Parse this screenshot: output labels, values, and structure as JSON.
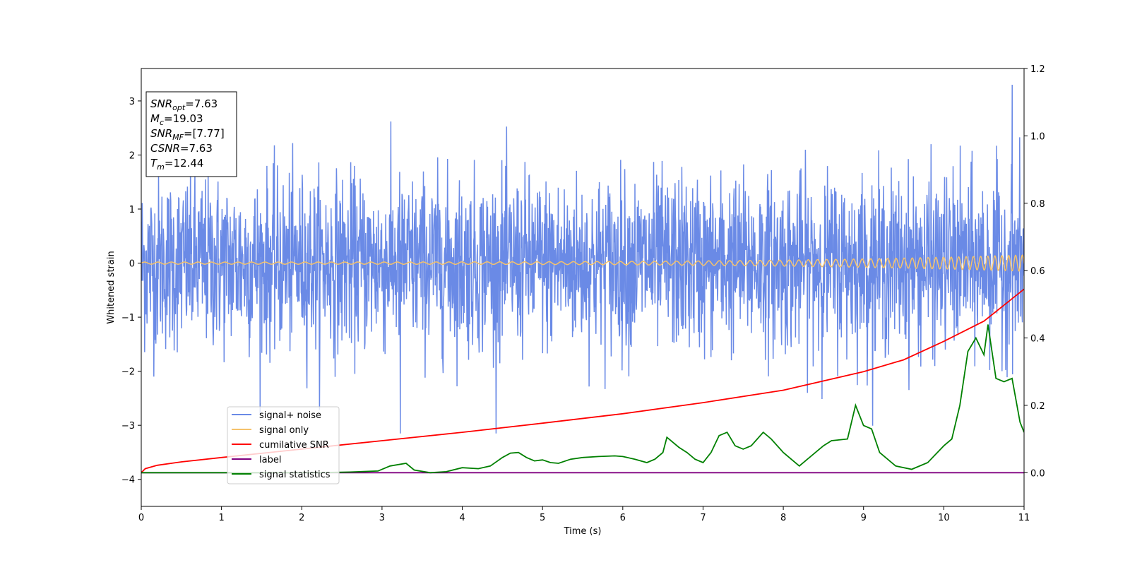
{
  "chart_data": {
    "type": "line",
    "xlabel": "Time (s)",
    "ylabel": "Whitened strain",
    "xlim": [
      0,
      11
    ],
    "ylim_left": [
      -4.5,
      3.6
    ],
    "ylim_right": [
      -0.1,
      1.2
    ],
    "x_ticks": [
      "0",
      "1",
      "2",
      "3",
      "4",
      "5",
      "6",
      "7",
      "8",
      "9",
      "10",
      "11"
    ],
    "y_ticks_left": [
      "−4",
      "−3",
      "−2",
      "−1",
      "0",
      "1",
      "2",
      "3"
    ],
    "y_ticks_right": [
      "0.0",
      "0.2",
      "0.4",
      "0.6",
      "0.8",
      "1.0",
      "1.2"
    ],
    "grid": false,
    "legend_position": "lower-left",
    "series": [
      {
        "name": "signal+ noise",
        "axis": "left",
        "color": "#6a8ae6",
        "kind": "noise",
        "noise_std": 0.8,
        "typical_range": [
          -2.0,
          2.0
        ],
        "peak_max": 3.3,
        "peak_min": -3.15
      },
      {
        "name": "signal only",
        "axis": "left",
        "color": "#f5c26b",
        "kind": "chirp",
        "amplitude_start": 0.02,
        "amplitude_end": 0.15,
        "cycles_per_s_start": 6,
        "cycles_per_s_end": 12
      },
      {
        "name": "cumilative SNR",
        "axis": "right",
        "color": "#ff0000",
        "x": [
          0,
          0.05,
          0.2,
          0.5,
          1,
          2,
          3,
          4,
          5,
          6,
          7,
          8,
          9,
          9.5,
          10,
          10.5,
          11
        ],
        "y": [
          0.0,
          0.012,
          0.022,
          0.032,
          0.045,
          0.07,
          0.095,
          0.12,
          0.147,
          0.175,
          0.208,
          0.245,
          0.3,
          0.335,
          0.39,
          0.45,
          0.545
        ]
      },
      {
        "name": "label",
        "axis": "right",
        "color": "#800080",
        "x": [
          0,
          11
        ],
        "y": [
          0.0,
          0.0
        ]
      },
      {
        "name": "signal statistics",
        "axis": "right",
        "color": "#008000",
        "x": [
          0,
          1.1,
          2.2,
          2.6,
          2.95,
          3.1,
          3.3,
          3.4,
          3.6,
          3.8,
          4.0,
          4.2,
          4.35,
          4.5,
          4.6,
          4.7,
          4.8,
          4.9,
          5.0,
          5.1,
          5.2,
          5.35,
          5.5,
          5.7,
          5.9,
          6.0,
          6.15,
          6.3,
          6.4,
          6.5,
          6.55,
          6.7,
          6.8,
          6.9,
          7.0,
          7.1,
          7.2,
          7.3,
          7.4,
          7.5,
          7.6,
          7.75,
          7.85,
          8.0,
          8.2,
          8.3,
          8.5,
          8.6,
          8.8,
          8.9,
          9.0,
          9.1,
          9.2,
          9.3,
          9.4,
          9.6,
          9.8,
          10.0,
          10.1,
          10.2,
          10.3,
          10.4,
          10.5,
          10.55,
          10.65,
          10.75,
          10.85,
          10.95,
          11.0
        ],
        "y": [
          0.0,
          0.0,
          0.0,
          0.002,
          0.005,
          0.02,
          0.028,
          0.008,
          0.0,
          0.003,
          0.015,
          0.012,
          0.02,
          0.045,
          0.058,
          0.06,
          0.045,
          0.035,
          0.038,
          0.03,
          0.028,
          0.04,
          0.045,
          0.048,
          0.05,
          0.048,
          0.04,
          0.03,
          0.04,
          0.06,
          0.105,
          0.075,
          0.06,
          0.04,
          0.03,
          0.06,
          0.11,
          0.12,
          0.08,
          0.07,
          0.08,
          0.12,
          0.1,
          0.06,
          0.02,
          0.04,
          0.08,
          0.095,
          0.1,
          0.2,
          0.14,
          0.13,
          0.06,
          0.04,
          0.02,
          0.01,
          0.03,
          0.08,
          0.1,
          0.2,
          0.36,
          0.4,
          0.35,
          0.44,
          0.28,
          0.27,
          0.28,
          0.15,
          0.12
        ]
      }
    ]
  },
  "info_box": [
    {
      "sym": "SNR",
      "sub": "opt",
      "val": "=7.63"
    },
    {
      "sym": "M",
      "sub": "c",
      "val": "=19.03"
    },
    {
      "sym": "SNR",
      "sub": "MF",
      "val": "=[7.77]"
    },
    {
      "sym": "CSNR",
      "sub": "",
      "val": "=7.63"
    },
    {
      "sym": "T",
      "sub": "m",
      "val": "=12.44"
    }
  ]
}
